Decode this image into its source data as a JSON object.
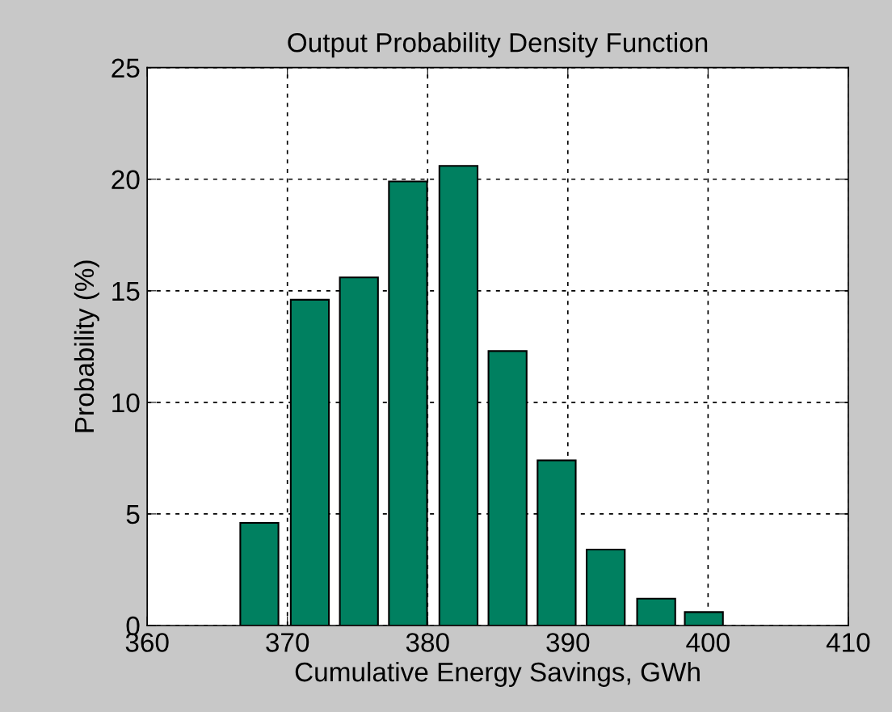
{
  "chart_data": {
    "type": "bar",
    "title": "Output Probability Density Function",
    "xlabel": "Cumulative Energy Savings, GWh",
    "ylabel": "Probability (%)",
    "x": [
      368.0,
      371.6,
      375.1,
      378.6,
      382.2,
      385.7,
      389.2,
      392.7,
      396.3,
      399.7
    ],
    "values": [
      4.6,
      14.6,
      15.6,
      19.9,
      20.6,
      12.3,
      7.4,
      3.4,
      1.2,
      0.6
    ],
    "color": "#008060",
    "xlim": [
      360,
      410
    ],
    "xticks": [
      360,
      370,
      380,
      390,
      400,
      410
    ],
    "ylim": [
      0,
      25
    ],
    "yticks": [
      0,
      5,
      10,
      15,
      20,
      25
    ],
    "grid": true
  }
}
